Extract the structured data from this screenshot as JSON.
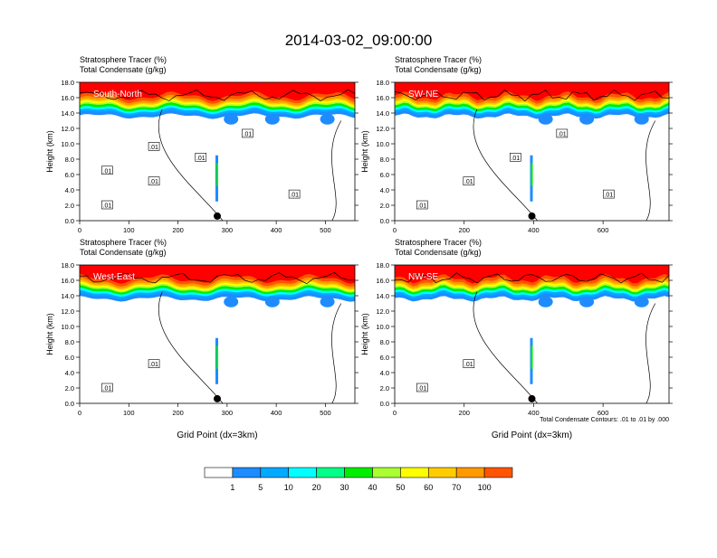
{
  "title": "2014-03-02_09:00:00",
  "panel_header_lines": [
    "Stratosphere Tracer   (%)",
    "Total Condensate   (g/kg)"
  ],
  "y_axis_label": "Height (km)",
  "x_axis_label": "Grid Point (dx=3km)",
  "contour_note": "Total Condensate Contours: .01 to .01 by .000",
  "colorbar": {
    "labels": [
      "1",
      "5",
      "10",
      "20",
      "30",
      "40",
      "50",
      "60",
      "70",
      "100"
    ],
    "colors": [
      "#ffffff",
      "#1e8cff",
      "#00aaff",
      "#00ffff",
      "#00ff88",
      "#00ee00",
      "#aaff33",
      "#ffff00",
      "#ffcc00",
      "#ff9900",
      "#ff5500",
      "#ff0000"
    ]
  },
  "chart_data": [
    {
      "type": "heatmap",
      "panel": "South-North",
      "xlim": [
        0,
        560
      ],
      "ylim": [
        0,
        18
      ],
      "x_ticks": [
        "0",
        "100",
        "200",
        "300",
        "400",
        "500"
      ],
      "y_ticks": [
        "0.0",
        "2.0",
        "4.0",
        "6.0",
        "8.0",
        "10.0",
        "12.0",
        "14.0",
        "16.0",
        "18.0"
      ],
      "marker_x": 280,
      "tracer_band": [
        {
          "x": [
            0,
            560
          ],
          "ymin": 15.5,
          "ymax": 18,
          "level": "red-orange"
        },
        {
          "x": [
            0,
            560
          ],
          "ymin": 14.2,
          "ymax": 15.5,
          "level": "yellow-green"
        },
        {
          "x": [
            250,
            440
          ],
          "ymin": 12.5,
          "ymax": 14.5,
          "level": "blue"
        }
      ],
      "contour_labels": [
        ".01",
        ".01",
        ".01",
        ".01",
        ".01",
        ".01",
        ".01"
      ]
    },
    {
      "type": "heatmap",
      "panel": "SW-NE",
      "xlim": [
        0,
        790
      ],
      "ylim": [
        0,
        18
      ],
      "x_ticks": [
        "0",
        "200",
        "400",
        "600"
      ],
      "y_ticks": [
        "0.0",
        "2.0",
        "4.0",
        "6.0",
        "8.0",
        "10.0",
        "12.0",
        "14.0",
        "16.0",
        "18.0"
      ],
      "marker_x": 395,
      "contour_labels": [
        ".01",
        ".01",
        ".01",
        ".01",
        ".01"
      ]
    },
    {
      "type": "heatmap",
      "panel": "West-East",
      "xlim": [
        0,
        560
      ],
      "ylim": [
        0,
        18
      ],
      "x_ticks": [
        "0",
        "100",
        "200",
        "300",
        "400",
        "500"
      ],
      "y_ticks": [
        "0.0",
        "2.0",
        "4.0",
        "6.0",
        "8.0",
        "10.0",
        "12.0",
        "14.0",
        "16.0",
        "18.0"
      ],
      "marker_x": 280,
      "contour_labels": [
        ".01",
        ".01"
      ]
    },
    {
      "type": "heatmap",
      "panel": "NW-SE",
      "xlim": [
        0,
        790
      ],
      "ylim": [
        0,
        18
      ],
      "x_ticks": [
        "0",
        "200",
        "400",
        "600"
      ],
      "y_ticks": [
        "0.0",
        "2.0",
        "4.0",
        "6.0",
        "8.0",
        "10.0",
        "12.0",
        "14.0",
        "16.0",
        "18.0"
      ],
      "marker_x": 395,
      "contour_labels": [
        ".01",
        ".01"
      ]
    }
  ]
}
